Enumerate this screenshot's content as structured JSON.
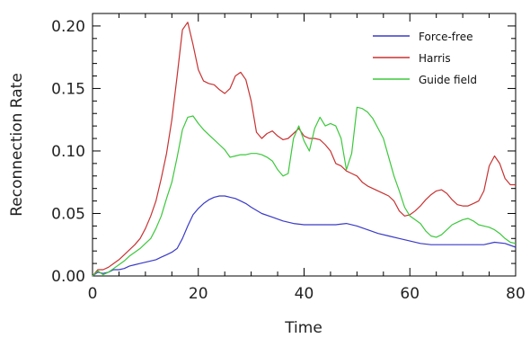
{
  "chart_data": {
    "type": "line",
    "title": "",
    "xlabel": "Time",
    "ylabel": "Reconnection Rate",
    "xlim": [
      0,
      80
    ],
    "ylim": [
      0,
      0.21
    ],
    "xticks": [
      0,
      20,
      40,
      60,
      80
    ],
    "xtick_labels": [
      "0",
      "20",
      "40",
      "60",
      "80"
    ],
    "yticks": [
      0,
      0.05,
      0.1,
      0.15,
      0.2
    ],
    "ytick_labels": [
      "0.00",
      "0.05",
      "0.10",
      "0.15",
      "0.20"
    ],
    "grid": false,
    "legend_position": "top-right",
    "series": [
      {
        "name": "Force-free",
        "color": "#3a3ac8",
        "x": [
          0,
          1,
          2,
          3,
          4,
          5,
          6,
          7,
          8,
          9,
          10,
          11,
          12,
          13,
          14,
          15,
          16,
          17,
          18,
          19,
          20,
          21,
          22,
          23,
          24,
          25,
          26,
          27,
          28,
          29,
          30,
          32,
          34,
          36,
          38,
          40,
          42,
          44,
          46,
          48,
          50,
          52,
          54,
          56,
          58,
          60,
          62,
          64,
          66,
          68,
          70,
          72,
          74,
          76,
          78,
          80
        ],
        "y": [
          0.0,
          0.003,
          0.002,
          0.003,
          0.005,
          0.005,
          0.006,
          0.008,
          0.009,
          0.01,
          0.011,
          0.012,
          0.013,
          0.015,
          0.017,
          0.019,
          0.022,
          0.03,
          0.04,
          0.049,
          0.054,
          0.058,
          0.061,
          0.063,
          0.064,
          0.064,
          0.063,
          0.062,
          0.06,
          0.058,
          0.055,
          0.05,
          0.047,
          0.044,
          0.042,
          0.041,
          0.041,
          0.041,
          0.041,
          0.042,
          0.04,
          0.037,
          0.034,
          0.032,
          0.03,
          0.028,
          0.026,
          0.025,
          0.025,
          0.025,
          0.025,
          0.025,
          0.025,
          0.027,
          0.026,
          0.023
        ]
      },
      {
        "name": "Harris",
        "color": "#c83232",
        "x": [
          0,
          1,
          2,
          3,
          4,
          5,
          6,
          7,
          8,
          9,
          10,
          11,
          12,
          13,
          14,
          15,
          16,
          17,
          18,
          19,
          20,
          21,
          22,
          23,
          24,
          25,
          26,
          27,
          28,
          29,
          30,
          31,
          32,
          33,
          34,
          35,
          36,
          37,
          38,
          39,
          40,
          41,
          42,
          43,
          44,
          45,
          46,
          47,
          48,
          49,
          50,
          51,
          52,
          53,
          54,
          55,
          56,
          57,
          58,
          59,
          60,
          61,
          62,
          63,
          64,
          65,
          66,
          67,
          68,
          69,
          70,
          71,
          72,
          73,
          74,
          75,
          76,
          77,
          78,
          79,
          80
        ],
        "y": [
          0.0,
          0.005,
          0.005,
          0.007,
          0.01,
          0.013,
          0.017,
          0.021,
          0.025,
          0.03,
          0.038,
          0.048,
          0.06,
          0.078,
          0.098,
          0.125,
          0.16,
          0.197,
          0.203,
          0.185,
          0.165,
          0.156,
          0.154,
          0.153,
          0.149,
          0.146,
          0.15,
          0.16,
          0.163,
          0.157,
          0.14,
          0.115,
          0.11,
          0.114,
          0.116,
          0.112,
          0.109,
          0.11,
          0.114,
          0.118,
          0.112,
          0.11,
          0.11,
          0.109,
          0.105,
          0.1,
          0.09,
          0.088,
          0.084,
          0.082,
          0.08,
          0.075,
          0.072,
          0.07,
          0.068,
          0.066,
          0.064,
          0.06,
          0.052,
          0.048,
          0.049,
          0.052,
          0.056,
          0.061,
          0.065,
          0.068,
          0.069,
          0.066,
          0.061,
          0.057,
          0.056,
          0.056,
          0.058,
          0.06,
          0.068,
          0.088,
          0.096,
          0.09,
          0.078,
          0.073,
          0.073
        ]
      },
      {
        "name": "Guide field",
        "color": "#3cc83c",
        "x": [
          0,
          1,
          2,
          3,
          4,
          5,
          6,
          7,
          8,
          9,
          10,
          11,
          12,
          13,
          14,
          15,
          16,
          17,
          18,
          19,
          20,
          21,
          22,
          23,
          24,
          25,
          26,
          27,
          28,
          29,
          30,
          31,
          32,
          33,
          34,
          35,
          36,
          37,
          38,
          39,
          40,
          41,
          42,
          43,
          44,
          45,
          46,
          47,
          48,
          49,
          50,
          51,
          52,
          53,
          54,
          55,
          56,
          57,
          58,
          59,
          60,
          61,
          62,
          63,
          64,
          65,
          66,
          67,
          68,
          69,
          70,
          71,
          72,
          73,
          74,
          75,
          76,
          77,
          78,
          79,
          80
        ],
        "y": [
          0.0,
          0.004,
          0.001,
          0.003,
          0.006,
          0.009,
          0.012,
          0.016,
          0.019,
          0.022,
          0.026,
          0.03,
          0.038,
          0.048,
          0.062,
          0.075,
          0.095,
          0.117,
          0.127,
          0.128,
          0.122,
          0.117,
          0.113,
          0.109,
          0.105,
          0.101,
          0.095,
          0.096,
          0.097,
          0.097,
          0.098,
          0.098,
          0.097,
          0.095,
          0.092,
          0.085,
          0.08,
          0.082,
          0.11,
          0.12,
          0.108,
          0.1,
          0.118,
          0.127,
          0.12,
          0.122,
          0.12,
          0.11,
          0.085,
          0.098,
          0.135,
          0.134,
          0.131,
          0.126,
          0.118,
          0.11,
          0.095,
          0.08,
          0.068,
          0.055,
          0.048,
          0.045,
          0.042,
          0.036,
          0.032,
          0.031,
          0.033,
          0.037,
          0.041,
          0.043,
          0.045,
          0.046,
          0.044,
          0.041,
          0.04,
          0.039,
          0.037,
          0.034,
          0.03,
          0.027,
          0.026
        ]
      }
    ]
  }
}
